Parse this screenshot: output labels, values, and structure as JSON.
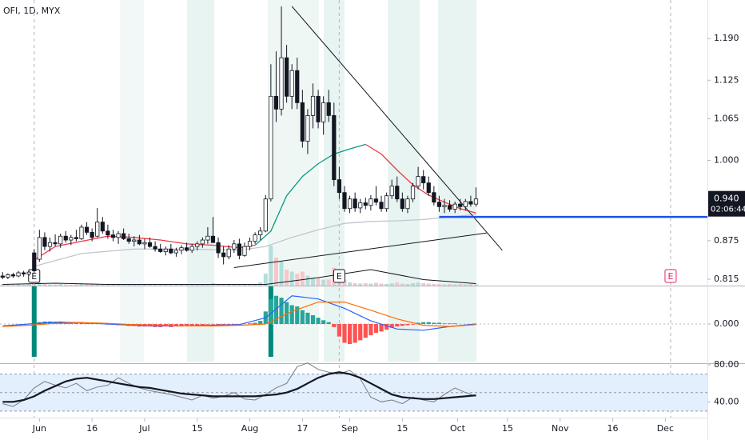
{
  "chart_data": [
    {
      "type": "candlestick",
      "title": "OFI, 1D, MYX",
      "x": [
        0,
        1,
        2,
        3,
        4,
        5,
        6,
        7,
        8,
        9,
        10,
        11,
        12,
        13,
        14,
        15,
        16,
        17,
        18,
        19,
        20,
        21,
        22,
        23,
        24,
        25,
        26,
        27,
        28,
        29,
        30,
        31,
        32,
        33,
        34,
        35,
        36,
        37,
        38,
        39,
        40,
        41,
        42,
        43,
        44,
        45,
        46,
        47,
        48,
        49,
        50,
        51,
        52,
        53,
        54,
        55,
        56,
        57,
        58,
        59,
        60,
        61,
        62,
        63,
        64,
        65,
        66,
        67,
        68,
        69,
        70,
        71,
        72,
        73,
        74,
        75,
        76,
        77,
        78,
        79,
        80,
        81,
        82,
        83,
        84,
        85,
        86,
        87,
        88,
        89,
        90
      ],
      "open": [
        0.82,
        0.818,
        0.822,
        0.82,
        0.825,
        0.823,
        0.856,
        0.846,
        0.88,
        0.866,
        0.872,
        0.87,
        0.882,
        0.876,
        0.88,
        0.878,
        0.896,
        0.888,
        0.882,
        0.904,
        0.89,
        0.884,
        0.88,
        0.886,
        0.878,
        0.874,
        0.876,
        0.87,
        0.872,
        0.866,
        0.862,
        0.858,
        0.862,
        0.856,
        0.86,
        0.864,
        0.86,
        0.866,
        0.87,
        0.876,
        0.882,
        0.872,
        0.856,
        0.85,
        0.862,
        0.87,
        0.852,
        0.866,
        0.874,
        0.884,
        0.89,
        0.94,
        1.1,
        1.08,
        1.16,
        1.1,
        1.14,
        1.09,
        1.03,
        1.07,
        1.1,
        1.06,
        1.09,
        1.07,
        0.97,
        0.95,
        0.925,
        0.94,
        0.926,
        0.934,
        0.93,
        0.94,
        0.935,
        0.925,
        0.945,
        0.96,
        0.94,
        0.925,
        0.94,
        0.96,
        0.975,
        0.965,
        0.95,
        0.935,
        0.928,
        0.93,
        0.924,
        0.932,
        0.928,
        0.936,
        0.932
      ],
      "high": [
        0.826,
        0.824,
        0.825,
        0.828,
        0.828,
        0.83,
        0.862,
        0.892,
        0.888,
        0.88,
        0.885,
        0.886,
        0.89,
        0.884,
        0.892,
        0.9,
        0.904,
        0.894,
        0.926,
        0.912,
        0.9,
        0.892,
        0.89,
        0.894,
        0.886,
        0.882,
        0.884,
        0.878,
        0.88,
        0.874,
        0.87,
        0.866,
        0.87,
        0.864,
        0.868,
        0.872,
        0.87,
        0.874,
        0.88,
        0.896,
        0.912,
        0.88,
        0.866,
        0.868,
        0.876,
        0.878,
        0.872,
        0.88,
        0.888,
        0.896,
        0.946,
        1.15,
        1.17,
        1.24,
        1.18,
        1.15,
        1.16,
        1.11,
        1.08,
        1.12,
        1.11,
        1.1,
        1.11,
        1.09,
        0.99,
        0.96,
        0.945,
        0.95,
        0.94,
        0.942,
        0.946,
        0.96,
        0.945,
        0.95,
        0.97,
        0.975,
        0.95,
        0.945,
        0.965,
        0.99,
        0.985,
        0.975,
        0.96,
        0.945,
        0.94,
        0.938,
        0.936,
        0.94,
        0.94,
        0.945,
        0.958
      ],
      "low": [
        0.815,
        0.815,
        0.817,
        0.818,
        0.819,
        0.82,
        0.824,
        0.842,
        0.86,
        0.858,
        0.866,
        0.864,
        0.872,
        0.868,
        0.874,
        0.876,
        0.884,
        0.874,
        0.88,
        0.886,
        0.878,
        0.874,
        0.87,
        0.876,
        0.87,
        0.866,
        0.868,
        0.862,
        0.864,
        0.858,
        0.856,
        0.852,
        0.854,
        0.85,
        0.854,
        0.858,
        0.856,
        0.86,
        0.864,
        0.87,
        0.876,
        0.848,
        0.838,
        0.846,
        0.856,
        0.846,
        0.85,
        0.86,
        0.87,
        0.876,
        0.888,
        0.936,
        1.06,
        1.07,
        1.09,
        1.08,
        1.08,
        1.02,
        1.01,
        1.05,
        1.05,
        1.04,
        1.06,
        0.96,
        0.94,
        0.92,
        0.918,
        0.92,
        0.918,
        0.924,
        0.922,
        0.93,
        0.92,
        0.92,
        0.94,
        0.935,
        0.92,
        0.918,
        0.935,
        0.955,
        0.955,
        0.945,
        0.93,
        0.92,
        0.918,
        0.92,
        0.918,
        0.922,
        0.922,
        0.928,
        0.928
      ],
      "close": [
        0.818,
        0.822,
        0.82,
        0.825,
        0.823,
        0.826,
        0.828,
        0.88,
        0.866,
        0.872,
        0.87,
        0.882,
        0.876,
        0.88,
        0.878,
        0.896,
        0.888,
        0.88,
        0.904,
        0.89,
        0.884,
        0.88,
        0.886,
        0.878,
        0.874,
        0.876,
        0.87,
        0.872,
        0.866,
        0.862,
        0.858,
        0.862,
        0.856,
        0.86,
        0.864,
        0.86,
        0.866,
        0.87,
        0.876,
        0.882,
        0.872,
        0.856,
        0.85,
        0.862,
        0.87,
        0.852,
        0.866,
        0.874,
        0.884,
        0.89,
        0.94,
        1.1,
        1.08,
        1.16,
        1.1,
        1.14,
        1.09,
        1.03,
        1.07,
        1.1,
        1.06,
        1.09,
        1.07,
        0.97,
        0.95,
        0.925,
        0.94,
        0.926,
        0.934,
        0.93,
        0.94,
        0.935,
        0.925,
        0.945,
        0.96,
        0.94,
        0.925,
        0.94,
        0.96,
        0.975,
        0.965,
        0.95,
        0.935,
        0.928,
        0.93,
        0.924,
        0.932,
        0.928,
        0.936,
        0.932,
        0.94
      ],
      "up_color": "#ffffff",
      "down_color": "#131722",
      "xlim": [
        -0.5,
        134
      ],
      "ylim": [
        0.805,
        1.25
      ],
      "yticks": [
        {
          "value": 1.19,
          "label": "1.190"
        },
        1.125,
        1.065,
        {
          "value": 1,
          "label": "1.000"
        },
        0.875,
        0.815
      ],
      "last_price": {
        "value": 0.94,
        "label": "0.940"
      },
      "countdown": "02:06:44",
      "lines": [
        {
          "color": "#f23645",
          "x": [
            6,
            10,
            15,
            20,
            25,
            30,
            35,
            40,
            45,
            48
          ],
          "values": [
            0.845,
            0.866,
            0.874,
            0.882,
            0.88,
            0.876,
            0.87,
            0.868,
            0.864,
            0.868
          ]
        },
        {
          "color": "#089981",
          "x": [
            48,
            51,
            54,
            57,
            60,
            63,
            66,
            69
          ],
          "values": [
            0.868,
            0.89,
            0.945,
            0.975,
            0.995,
            1.01,
            1.018,
            1.025
          ]
        },
        {
          "color": "#f23645",
          "x": [
            69,
            72,
            75,
            78,
            81,
            84,
            87,
            90
          ],
          "values": [
            1.025,
            1.01,
            0.985,
            0.962,
            0.946,
            0.935,
            0.925,
            0.918
          ]
        },
        {
          "color": "#c3c6ce",
          "x": [
            6,
            15,
            25,
            35,
            45,
            50,
            55,
            60,
            65,
            70,
            75,
            80,
            85,
            90
          ],
          "values": [
            0.835,
            0.855,
            0.862,
            0.862,
            0.86,
            0.866,
            0.88,
            0.892,
            0.902,
            0.905,
            0.906,
            0.908,
            0.912,
            0.916
          ]
        }
      ],
      "trendlines": [
        {
          "color": "#131722",
          "x": [
            55,
            95
          ],
          "values": [
            1.24,
            0.86
          ]
        },
        {
          "color": "#131722",
          "x": [
            44,
            92
          ],
          "values": [
            0.833,
            0.887
          ]
        }
      ],
      "hline": {
        "value": 0.912,
        "x": 83,
        "color": "#1e53e5"
      },
      "volume": {
        "values": [
          3,
          2,
          2,
          3,
          2,
          3,
          20,
          8,
          4,
          3,
          3,
          4,
          3,
          2,
          3,
          4,
          3,
          5,
          3,
          3,
          2,
          3,
          2,
          2,
          3,
          2,
          3,
          2,
          2,
          3,
          2,
          3,
          2,
          3,
          2,
          3,
          2,
          3,
          4,
          4,
          6,
          3,
          3,
          2,
          3,
          3,
          2,
          3,
          4,
          8,
          30,
          100,
          70,
          60,
          40,
          35,
          30,
          35,
          25,
          20,
          18,
          15,
          15,
          45,
          25,
          15,
          8,
          6,
          5,
          6,
          5,
          7,
          5,
          4,
          6,
          8,
          5,
          4,
          6,
          8,
          6,
          5,
          4,
          4,
          3,
          4,
          3,
          4,
          3,
          4,
          3
        ],
        "up_color": "#b2dfdb",
        "down_color": "#f7c6c9",
        "ma": {
          "color": "#131722",
          "x": [
            0,
            10,
            20,
            30,
            40,
            50,
            60,
            70,
            80,
            90
          ],
          "values": [
            3,
            6,
            3,
            3,
            3,
            3,
            20,
            40,
            15,
            5
          ]
        }
      },
      "events": [
        {
          "label": "E",
          "x": 6,
          "color": "#131722"
        },
        {
          "label": "E",
          "x": 64,
          "color": "#131722"
        },
        {
          "label": "E",
          "x": 127,
          "color": "#e91e63"
        }
      ]
    },
    {
      "type": "bar",
      "values": [
        0,
        0,
        0,
        0,
        0,
        0,
        0.001,
        0.003,
        0.004,
        0.004,
        0.003,
        0.004,
        0.003,
        0.003,
        0.002,
        0.003,
        0.002,
        0.001,
        0.002,
        0.001,
        -0.001,
        -0.001,
        -0.002,
        -0.002,
        -0.003,
        -0.003,
        -0.004,
        -0.004,
        -0.004,
        -0.005,
        -0.005,
        -0.004,
        -0.005,
        -0.004,
        -0.004,
        -0.003,
        -0.003,
        -0.002,
        -0.002,
        -0.001,
        -0.001,
        -0.002,
        -0.003,
        -0.002,
        -0.002,
        -0.001,
        0,
        0.001,
        0.002,
        0.005,
        0.02,
        0.04,
        0.045,
        0.042,
        0.035,
        0.03,
        0.028,
        0.022,
        0.018,
        0.014,
        0.01,
        0.006,
        0.003,
        -0.005,
        -0.02,
        -0.03,
        -0.032,
        -0.03,
        -0.026,
        -0.022,
        -0.018,
        -0.014,
        -0.012,
        -0.009,
        -0.006,
        -0.004,
        -0.003,
        -0.002,
        -0.001,
        0.002,
        0.003,
        0.003,
        0.002,
        0.002,
        0.001,
        0.001,
        0.001,
        0,
        0,
        -0.001,
        0
      ],
      "pos_color": "#26a69a",
      "neg_color": "#ff5252",
      "ylim": [
        -0.06,
        0.06
      ],
      "yticks": [
        {
          "value": 0,
          "label": "0.000"
        }
      ],
      "signals": [
        6,
        51
      ],
      "signal_color": "#00897b",
      "lines": [
        {
          "color": "#2962ff",
          "x": [
            0,
            5,
            10,
            15,
            20,
            25,
            30,
            35,
            40,
            45,
            50,
            55,
            60,
            65,
            70,
            75,
            80,
            85,
            90
          ],
          "values": [
            -0.003,
            0,
            0.003,
            0.002,
            0,
            -0.002,
            -0.003,
            -0.003,
            -0.002,
            -0.001,
            0.01,
            0.045,
            0.04,
            0.025,
            0.005,
            -0.008,
            -0.01,
            -0.004,
            0
          ]
        },
        {
          "color": "#ff6d00",
          "x": [
            0,
            5,
            10,
            15,
            20,
            25,
            30,
            35,
            40,
            45,
            50,
            55,
            60,
            65,
            70,
            75,
            80,
            85,
            90
          ],
          "values": [
            -0.004,
            -0.002,
            0.001,
            0.002,
            0.001,
            -0.001,
            -0.002,
            -0.003,
            -0.003,
            -0.002,
            0,
            0.02,
            0.035,
            0.035,
            0.022,
            0.008,
            -0.002,
            -0.004,
            -0.001
          ]
        }
      ]
    },
    {
      "type": "line",
      "ylim": [
        23,
        80
      ],
      "yticks": [
        {
          "value": 80,
          "label": "80.00"
        },
        {
          "value": 40,
          "label": "40.00"
        }
      ],
      "band": [
        30,
        70
      ],
      "band_color": "#e3effd",
      "levels": [
        30,
        50,
        70
      ],
      "lines": [
        {
          "color": "#787b86",
          "x": [
            0,
            2,
            4,
            6,
            8,
            10,
            12,
            14,
            16,
            18,
            20,
            22,
            24,
            26,
            28,
            30,
            32,
            34,
            36,
            38,
            40,
            42,
            44,
            46,
            48,
            50,
            52,
            54,
            56,
            58,
            60,
            62,
            64,
            66,
            68,
            70,
            72,
            74,
            76,
            78,
            80,
            82,
            84,
            86,
            88,
            90
          ],
          "values": [
            38,
            35,
            42,
            55,
            62,
            58,
            55,
            60,
            52,
            56,
            58,
            66,
            60,
            55,
            52,
            50,
            48,
            45,
            42,
            47,
            44,
            46,
            50,
            43,
            42,
            48,
            55,
            60,
            78,
            82,
            75,
            72,
            70,
            74,
            65,
            45,
            40,
            42,
            38,
            45,
            42,
            40,
            48,
            55,
            50,
            46
          ]
        },
        {
          "color": "#131722",
          "x": [
            0,
            2,
            4,
            6,
            8,
            10,
            12,
            14,
            16,
            18,
            20,
            22,
            24,
            26,
            28,
            30,
            32,
            34,
            36,
            38,
            40,
            42,
            44,
            46,
            48,
            50,
            52,
            54,
            56,
            58,
            60,
            62,
            64,
            66,
            68,
            70,
            72,
            74,
            76,
            78,
            80,
            82,
            84,
            86,
            88,
            90
          ],
          "values": [
            40,
            40,
            42,
            46,
            52,
            57,
            62,
            65,
            66,
            64,
            62,
            60,
            58,
            56,
            55,
            53,
            51,
            49,
            48,
            47,
            46,
            46,
            46,
            46,
            46,
            47,
            48,
            50,
            54,
            60,
            66,
            70,
            72,
            70,
            66,
            60,
            54,
            48,
            45,
            44,
            43,
            43,
            44,
            45,
            46,
            47
          ]
        }
      ],
      "xticks": [
        {
          "value": 7,
          "label": "Jun"
        },
        {
          "value": 17,
          "label": "16"
        },
        {
          "value": 27,
          "label": "Jul"
        },
        {
          "value": 37,
          "label": "15"
        },
        {
          "value": 47,
          "label": "Aug"
        },
        {
          "value": 57,
          "label": "17"
        },
        {
          "value": 66,
          "label": "Sep"
        },
        {
          "value": 76,
          "label": "15"
        },
        {
          "value": 86.5,
          "label": "Oct"
        },
        {
          "value": 96,
          "label": "15"
        },
        {
          "value": 106,
          "label": "Nov"
        },
        {
          "value": 116,
          "label": "16"
        },
        {
          "value": 126,
          "label": "Dec"
        }
      ]
    }
  ]
}
